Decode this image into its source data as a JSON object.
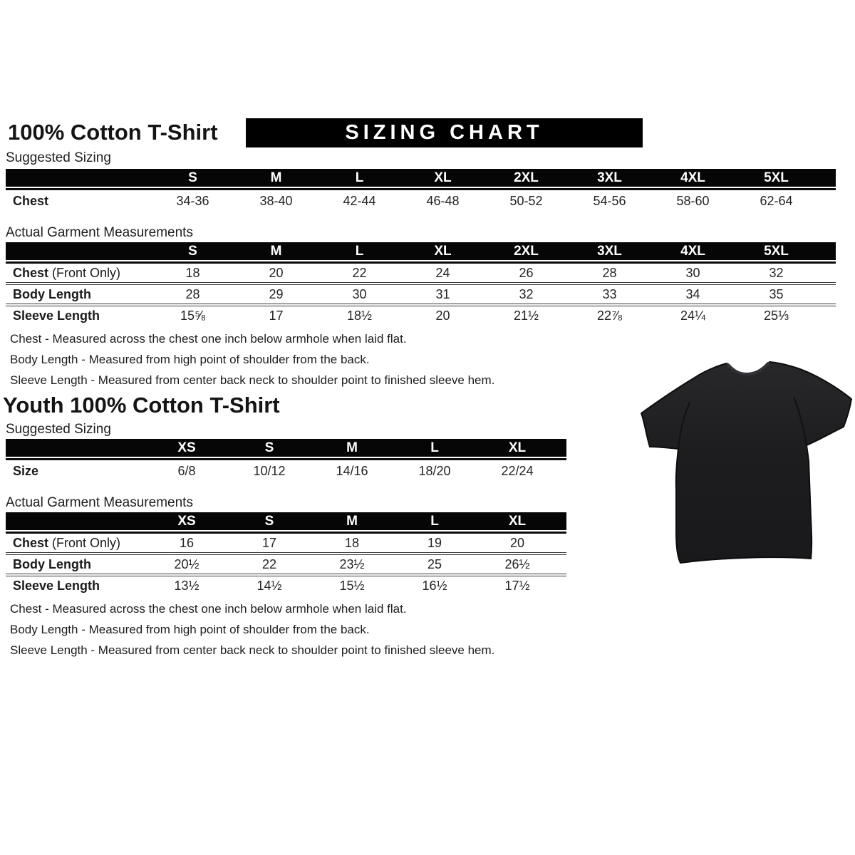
{
  "banner": "SIZING CHART",
  "adult": {
    "title": "100% Cotton T-Shirt",
    "suggested": {
      "label": "Suggested Sizing",
      "columns": [
        "S",
        "M",
        "L",
        "XL",
        "2XL",
        "3XL",
        "4XL",
        "5XL"
      ],
      "rows": [
        {
          "label": "Chest",
          "suffix": "",
          "values": [
            "34-36",
            "38-40",
            "42-44",
            "46-48",
            "50-52",
            "54-56",
            "58-60",
            "62-64"
          ]
        }
      ]
    },
    "actual": {
      "label": "Actual Garment Measurements",
      "columns": [
        "S",
        "M",
        "L",
        "XL",
        "2XL",
        "3XL",
        "4XL",
        "5XL"
      ],
      "rows": [
        {
          "label": "Chest",
          "suffix": " (Front Only)",
          "values": [
            "18",
            "20",
            "22",
            "24",
            "26",
            "28",
            "30",
            "32"
          ]
        },
        {
          "label": "Body Length",
          "suffix": "",
          "values": [
            "28",
            "29",
            "30",
            "31",
            "32",
            "33",
            "34",
            "35"
          ]
        },
        {
          "label": "Sleeve Length",
          "suffix": "",
          "values": [
            "15⅝",
            "17",
            "18½",
            "20",
            "21½",
            "22⅞",
            "24¼",
            "25⅓"
          ]
        }
      ]
    },
    "notes": [
      "Chest - Measured across the chest one inch below armhole when laid flat.",
      "Body Length - Measured from high point of shoulder from the back.",
      "Sleeve Length - Measured from center back neck to shoulder point to finished sleeve hem."
    ]
  },
  "youth": {
    "title": "Youth 100% Cotton T-Shirt",
    "suggested": {
      "label": "Suggested Sizing",
      "columns": [
        "XS",
        "S",
        "M",
        "L",
        "XL"
      ],
      "rows": [
        {
          "label": "Size",
          "suffix": "",
          "values": [
            "6/8",
            "10/12",
            "14/16",
            "18/20",
            "22/24"
          ]
        }
      ]
    },
    "actual": {
      "label": "Actual Garment Measurements",
      "columns": [
        "XS",
        "S",
        "M",
        "L",
        "XL"
      ],
      "rows": [
        {
          "label": "Chest",
          "suffix": " (Front Only)",
          "values": [
            "16",
            "17",
            "18",
            "19",
            "20"
          ]
        },
        {
          "label": "Body Length",
          "suffix": "",
          "values": [
            "20½",
            "22",
            "23½",
            "25",
            "26½"
          ]
        },
        {
          "label": "Sleeve Length",
          "suffix": "",
          "values": [
            "13½",
            "14½",
            "15½",
            "16½",
            "17½"
          ]
        }
      ]
    },
    "notes": [
      "Chest - Measured across the chest one inch below armhole when laid flat.",
      "Body Length - Measured from high point of shoulder from the back.",
      "Sleeve Length - Measured from center back neck to shoulder point to finished sleeve hem."
    ]
  },
  "shirt_image": {
    "description": "black short-sleeve t-shirt photo",
    "color": "#1e1e20"
  },
  "colors": {
    "banner_bg": "#000000",
    "banner_text": "#ffffff",
    "table_header_bg": "#000000",
    "table_header_text": "#ffffff",
    "body_text": "#1a1a1a"
  }
}
